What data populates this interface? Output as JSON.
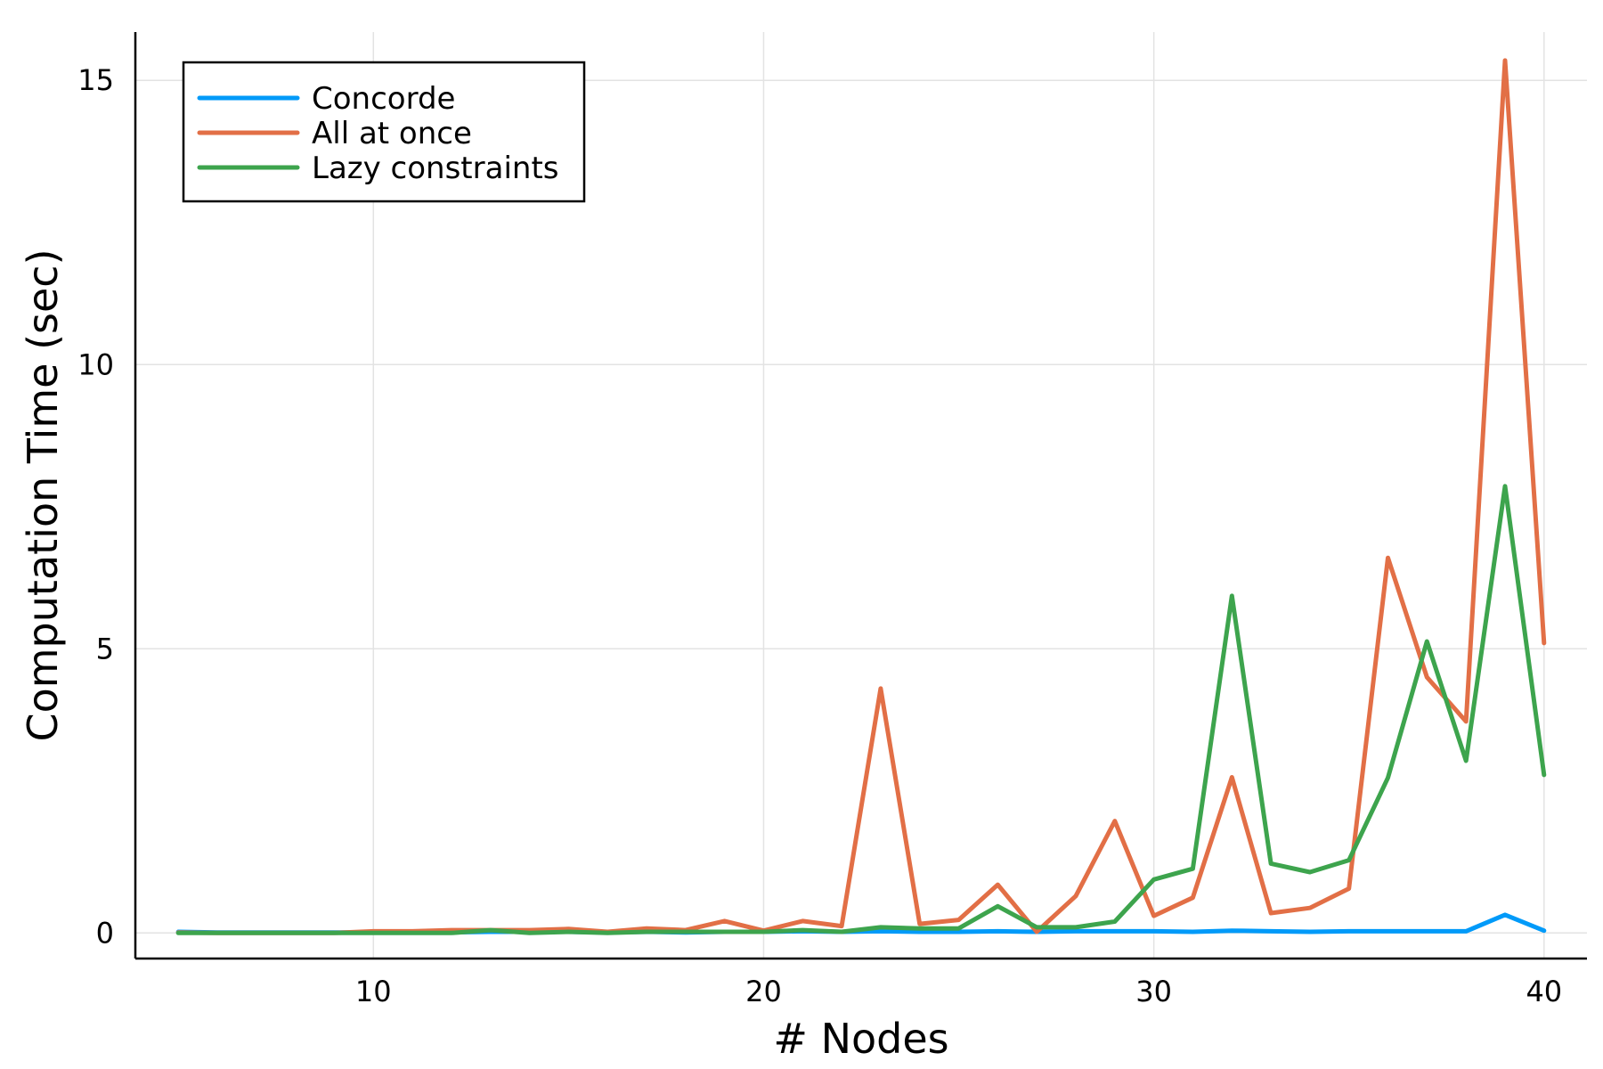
{
  "chart_data": {
    "type": "line",
    "xlabel": "# Nodes",
    "ylabel": "Computation Time (sec)",
    "xlim": [
      3.9,
      41.1
    ],
    "ylim": [
      -0.45,
      15.85
    ],
    "xticks": [
      10,
      20,
      30,
      40
    ],
    "yticks": [
      0,
      5,
      10,
      15
    ],
    "grid": true,
    "legend_position": "top-left",
    "x": [
      5,
      6,
      7,
      8,
      9,
      10,
      11,
      12,
      13,
      14,
      15,
      16,
      17,
      18,
      19,
      20,
      21,
      22,
      23,
      24,
      25,
      26,
      27,
      28,
      29,
      30,
      31,
      32,
      33,
      34,
      35,
      36,
      37,
      38,
      39,
      40
    ],
    "series": [
      {
        "name": "Concorde",
        "color": "#009af9",
        "values": [
          0.02,
          0.01,
          0.01,
          0.01,
          0.01,
          0.01,
          0.01,
          0.01,
          0.02,
          0.02,
          0.02,
          0.01,
          0.02,
          0.01,
          0.02,
          0.02,
          0.03,
          0.02,
          0.03,
          0.02,
          0.02,
          0.03,
          0.02,
          0.03,
          0.03,
          0.03,
          0.02,
          0.04,
          0.03,
          0.02,
          0.03,
          0.03,
          0.03,
          0.03,
          0.32,
          0.04
        ]
      },
      {
        "name": "All at once",
        "color": "#e26f46",
        "values": [
          0.01,
          0.0,
          0.0,
          0.0,
          0.0,
          0.03,
          0.03,
          0.05,
          0.05,
          0.05,
          0.07,
          0.02,
          0.08,
          0.05,
          0.21,
          0.04,
          0.21,
          0.12,
          4.3,
          0.16,
          0.23,
          0.85,
          0.02,
          0.65,
          1.97,
          0.3,
          0.62,
          2.74,
          0.35,
          0.44,
          0.78,
          6.6,
          4.5,
          3.72,
          15.35,
          5.1
        ]
      },
      {
        "name": "Lazy constraints",
        "color": "#3da44d",
        "values": [
          0.0,
          0.0,
          0.0,
          0.0,
          0.0,
          0.0,
          0.0,
          0.0,
          0.05,
          0.0,
          0.02,
          0.0,
          0.02,
          0.02,
          0.02,
          0.02,
          0.05,
          0.02,
          0.1,
          0.08,
          0.08,
          0.47,
          0.1,
          0.1,
          0.2,
          0.94,
          1.13,
          5.93,
          1.22,
          1.07,
          1.28,
          2.73,
          5.13,
          3.03,
          7.86,
          2.78
        ]
      }
    ]
  }
}
